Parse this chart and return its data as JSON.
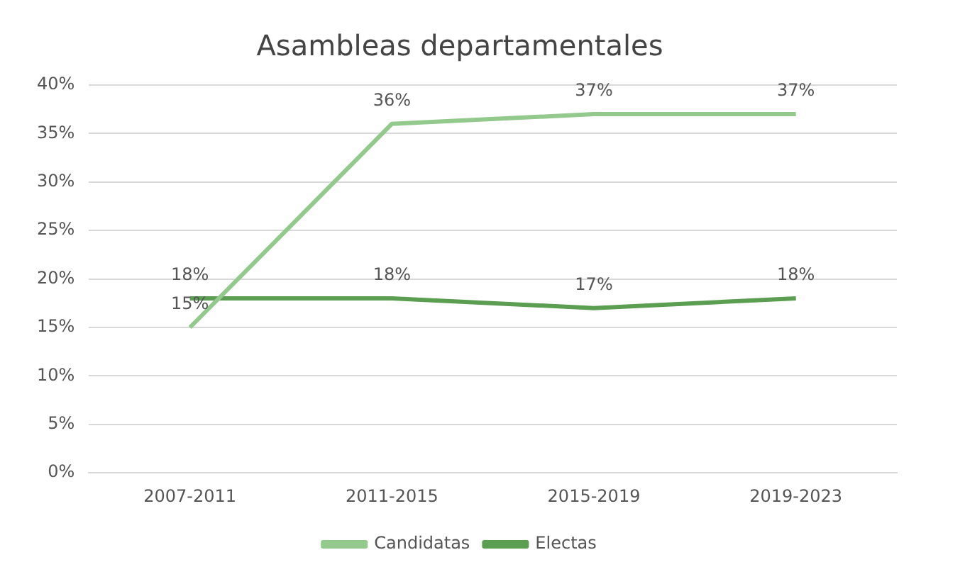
{
  "chart_data": {
    "type": "line",
    "title": "Asambleas departamentales",
    "categories": [
      "2007-2011",
      "2011-2015",
      "2015-2019",
      "2019-2023"
    ],
    "series": [
      {
        "name": "Candidatas",
        "color": "#93c98c",
        "values": [
          15,
          36,
          37,
          37
        ],
        "value_labels": [
          "15%",
          "36%",
          "37%",
          "37%"
        ]
      },
      {
        "name": "Electas",
        "color": "#5b9e52",
        "values": [
          18,
          18,
          17,
          18
        ],
        "value_labels": [
          "18%",
          "18%",
          "17%",
          "18%"
        ]
      }
    ],
    "ylim": [
      0,
      40
    ],
    "yticks": [
      {
        "value": 0,
        "label": "0%"
      },
      {
        "value": 5,
        "label": "5%"
      },
      {
        "value": 10,
        "label": "10%"
      },
      {
        "value": 15,
        "label": "15%"
      },
      {
        "value": 20,
        "label": "20%"
      },
      {
        "value": 25,
        "label": "25%"
      },
      {
        "value": 30,
        "label": "30%"
      },
      {
        "value": 35,
        "label": "35%"
      },
      {
        "value": 40,
        "label": "40%"
      }
    ],
    "grid": "y",
    "legend": "bottom",
    "marker": "none",
    "line_style": "solid"
  }
}
